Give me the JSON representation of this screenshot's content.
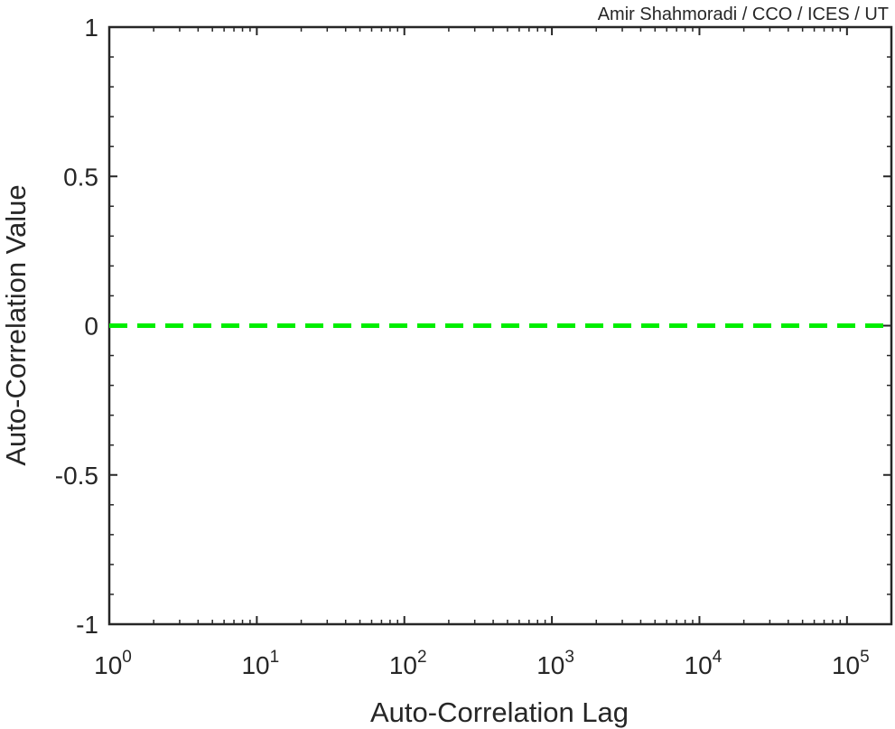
{
  "credit": "Amir Shahmoradi / CCO / ICES / UT",
  "chart_data": {
    "type": "line",
    "title": "",
    "xlabel": "Auto-Correlation Lag",
    "ylabel": "Auto-Correlation Value",
    "xscale": "log",
    "xlim": [
      1,
      200000
    ],
    "ylim": [
      -1,
      1
    ],
    "x_ticks": [
      {
        "base": "10",
        "exp": "0",
        "value": 1
      },
      {
        "base": "10",
        "exp": "1",
        "value": 10
      },
      {
        "base": "10",
        "exp": "2",
        "value": 100
      },
      {
        "base": "10",
        "exp": "3",
        "value": 1000
      },
      {
        "base": "10",
        "exp": "4",
        "value": 10000
      },
      {
        "base": "10",
        "exp": "5",
        "value": 100000
      }
    ],
    "y_ticks": [
      {
        "label": "1",
        "value": 1
      },
      {
        "label": "0.5",
        "value": 0.5
      },
      {
        "label": "0",
        "value": 0
      },
      {
        "label": "-0.5",
        "value": -0.5
      },
      {
        "label": "-1",
        "value": -1
      }
    ],
    "series": [
      {
        "x": [
          1,
          200000
        ],
        "y": [
          0,
          0
        ],
        "style": "dashed",
        "color": "#00ee00"
      }
    ],
    "grid": false,
    "legend": "none"
  }
}
